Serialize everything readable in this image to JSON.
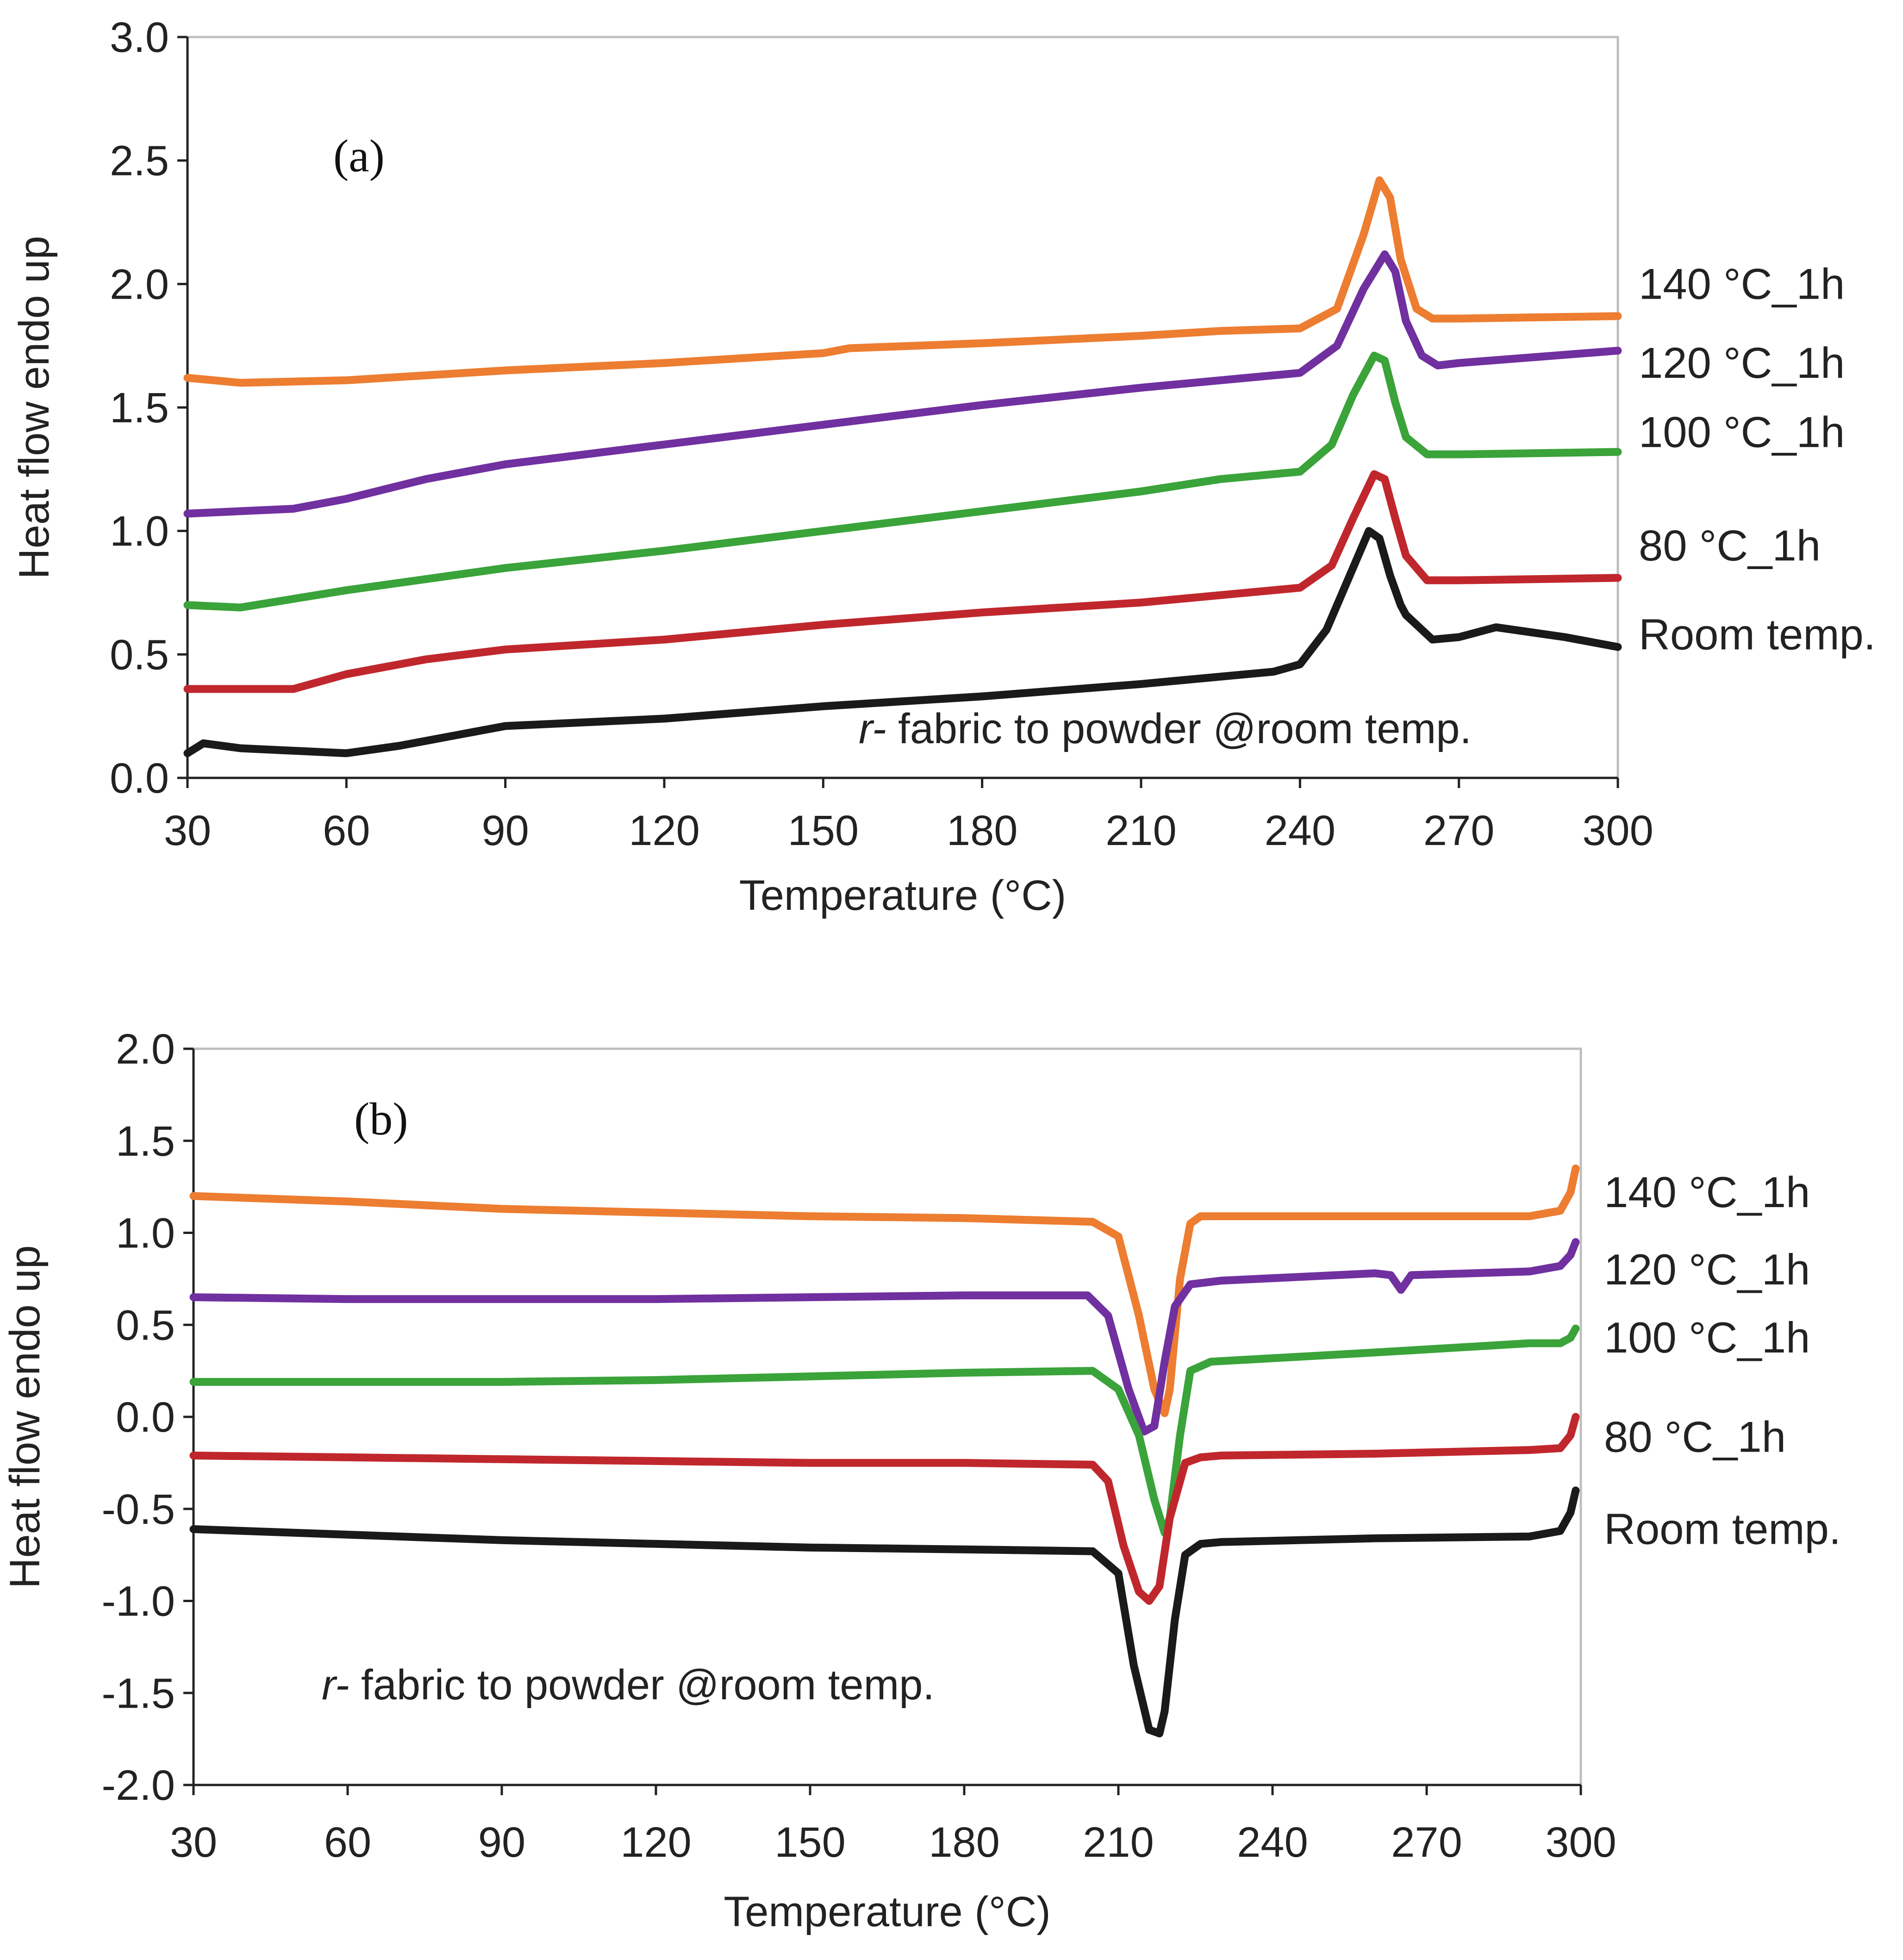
{
  "chart_data": [
    {
      "type": "line",
      "panel_label": "(a)",
      "xlabel": "Temperature  (°C)",
      "ylabel": "Heat flow endo up",
      "xlim": [
        30,
        300
      ],
      "ylim": [
        0.0,
        3.0
      ],
      "xticks": [
        "30",
        "60",
        "90",
        "120",
        "150",
        "180",
        "210",
        "240",
        "270",
        "300"
      ],
      "yticks": [
        "0.0",
        "0.5",
        "1.0",
        "1.5",
        "2.0",
        "2.5",
        "3.0"
      ],
      "annotation_italic": "r-",
      "annotation": " fabric to powder @room temp.",
      "grid": false,
      "series": [
        {
          "name": "140 °C_1h",
          "color": "#ed7d31",
          "label_y": 2.0,
          "x": [
            30,
            40,
            60,
            90,
            120,
            150,
            155,
            180,
            210,
            225,
            240,
            247,
            252,
            255,
            257,
            259,
            262,
            265,
            270,
            300
          ],
          "y": [
            1.62,
            1.6,
            1.61,
            1.65,
            1.68,
            1.72,
            1.74,
            1.76,
            1.79,
            1.81,
            1.82,
            1.9,
            2.2,
            2.42,
            2.35,
            2.1,
            1.9,
            1.86,
            1.86,
            1.87
          ]
        },
        {
          "name": "120 °C_1h",
          "color": "#7030a0",
          "label_y": 1.68,
          "x": [
            30,
            50,
            60,
            75,
            90,
            120,
            135,
            150,
            180,
            210,
            240,
            247,
            252,
            256,
            258,
            260,
            263,
            266,
            270,
            300
          ],
          "y": [
            1.07,
            1.09,
            1.13,
            1.21,
            1.27,
            1.35,
            1.39,
            1.43,
            1.51,
            1.58,
            1.64,
            1.75,
            1.98,
            2.12,
            2.05,
            1.85,
            1.71,
            1.67,
            1.68,
            1.73
          ]
        },
        {
          "name": "100 °C_1h",
          "color": "#3aa33a",
          "label_y": 1.4,
          "x": [
            30,
            40,
            60,
            90,
            120,
            150,
            180,
            210,
            225,
            240,
            246,
            250,
            254,
            256,
            258,
            260,
            264,
            270,
            300
          ],
          "y": [
            0.7,
            0.69,
            0.76,
            0.85,
            0.92,
            1.0,
            1.08,
            1.16,
            1.21,
            1.24,
            1.35,
            1.55,
            1.71,
            1.69,
            1.52,
            1.38,
            1.31,
            1.31,
            1.32
          ]
        },
        {
          "name": "80 °C_1h",
          "color": "#c0272d",
          "label_y": 0.94,
          "x": [
            30,
            50,
            60,
            75,
            90,
            120,
            150,
            180,
            210,
            225,
            240,
            246,
            250,
            254,
            256,
            258,
            260,
            264,
            270,
            300
          ],
          "y": [
            0.36,
            0.36,
            0.42,
            0.48,
            0.52,
            0.56,
            0.62,
            0.67,
            0.71,
            0.74,
            0.77,
            0.86,
            1.05,
            1.23,
            1.21,
            1.05,
            0.9,
            0.8,
            0.8,
            0.81
          ]
        },
        {
          "name": "Room temp.",
          "color": "#1a1a1a",
          "label_y": 0.58,
          "x": [
            30,
            33,
            40,
            60,
            70,
            80,
            90,
            120,
            150,
            180,
            210,
            225,
            235,
            240,
            245,
            250,
            253,
            255,
            257,
            259,
            260,
            262,
            265,
            270,
            277,
            290,
            300
          ],
          "y": [
            0.1,
            0.14,
            0.12,
            0.1,
            0.13,
            0.17,
            0.21,
            0.24,
            0.29,
            0.33,
            0.38,
            0.41,
            0.43,
            0.46,
            0.6,
            0.85,
            1.0,
            0.97,
            0.82,
            0.7,
            0.66,
            0.62,
            0.56,
            0.57,
            0.61,
            0.57,
            0.53
          ]
        }
      ]
    },
    {
      "type": "line",
      "panel_label": "(b)",
      "xlabel": "Temperature  (°C)",
      "ylabel": "Heat flow endo up",
      "xlim": [
        30,
        300
      ],
      "ylim": [
        -2.0,
        2.0
      ],
      "xticks": [
        "30",
        "60",
        "90",
        "120",
        "150",
        "180",
        "210",
        "240",
        "270",
        "300"
      ],
      "yticks": [
        "-2.0",
        "-1.5",
        "-1.0",
        "-0.5",
        "0.0",
        "0.5",
        "1.0",
        "1.5",
        "2.0"
      ],
      "annotation_italic": "r-",
      "annotation": " fabric to powder @room temp.",
      "grid": false,
      "series": [
        {
          "name": "140 °C_1h",
          "color": "#ed7d31",
          "label_y": 1.22,
          "x": [
            30,
            60,
            90,
            120,
            150,
            180,
            205,
            210,
            214,
            217,
            219,
            220,
            222,
            224,
            226,
            230,
            260,
            290,
            296,
            298,
            299
          ],
          "y": [
            1.2,
            1.17,
            1.13,
            1.11,
            1.09,
            1.08,
            1.06,
            0.98,
            0.55,
            0.15,
            0.02,
            0.15,
            0.75,
            1.05,
            1.09,
            1.09,
            1.09,
            1.09,
            1.12,
            1.22,
            1.35
          ]
        },
        {
          "name": "120 °C_1h",
          "color": "#7030a0",
          "label_y": 0.8,
          "x": [
            30,
            60,
            90,
            120,
            150,
            180,
            204,
            208,
            212,
            215,
            217,
            219,
            221,
            224,
            230,
            260,
            263,
            265,
            267,
            290,
            296,
            298,
            299
          ],
          "y": [
            0.65,
            0.64,
            0.64,
            0.64,
            0.65,
            0.66,
            0.66,
            0.55,
            0.15,
            -0.08,
            -0.05,
            0.3,
            0.6,
            0.72,
            0.74,
            0.78,
            0.77,
            0.69,
            0.77,
            0.79,
            0.82,
            0.88,
            0.95
          ]
        },
        {
          "name": "100 °C_1h",
          "color": "#3aa33a",
          "label_y": 0.43,
          "x": [
            30,
            60,
            90,
            120,
            150,
            180,
            205,
            210,
            214,
            217,
            219,
            220,
            222,
            224,
            228,
            260,
            290,
            296,
            298,
            299
          ],
          "y": [
            0.19,
            0.19,
            0.19,
            0.2,
            0.22,
            0.24,
            0.25,
            0.15,
            -0.1,
            -0.45,
            -0.63,
            -0.55,
            -0.1,
            0.25,
            0.3,
            0.35,
            0.4,
            0.4,
            0.43,
            0.48
          ]
        },
        {
          "name": "80 °C_1h",
          "color": "#c0272d",
          "label_y": -0.11,
          "x": [
            30,
            60,
            90,
            120,
            150,
            180,
            205,
            208,
            211,
            214,
            216,
            218,
            220,
            223,
            226,
            230,
            260,
            290,
            296,
            298,
            299
          ],
          "y": [
            -0.21,
            -0.22,
            -0.23,
            -0.24,
            -0.25,
            -0.25,
            -0.26,
            -0.35,
            -0.7,
            -0.95,
            -1.0,
            -0.92,
            -0.55,
            -0.25,
            -0.22,
            -0.21,
            -0.2,
            -0.18,
            -0.17,
            -0.1,
            0.0
          ]
        },
        {
          "name": "Room temp.",
          "color": "#1a1a1a",
          "label_y": -0.61,
          "x": [
            30,
            60,
            90,
            120,
            150,
            180,
            205,
            210,
            213,
            216,
            218,
            219,
            221,
            223,
            226,
            230,
            260,
            290,
            296,
            298,
            299
          ],
          "y": [
            -0.61,
            -0.64,
            -0.67,
            -0.69,
            -0.71,
            -0.72,
            -0.73,
            -0.85,
            -1.35,
            -1.7,
            -1.72,
            -1.6,
            -1.1,
            -0.75,
            -0.69,
            -0.68,
            -0.66,
            -0.65,
            -0.62,
            -0.52,
            -0.4
          ]
        }
      ]
    }
  ]
}
